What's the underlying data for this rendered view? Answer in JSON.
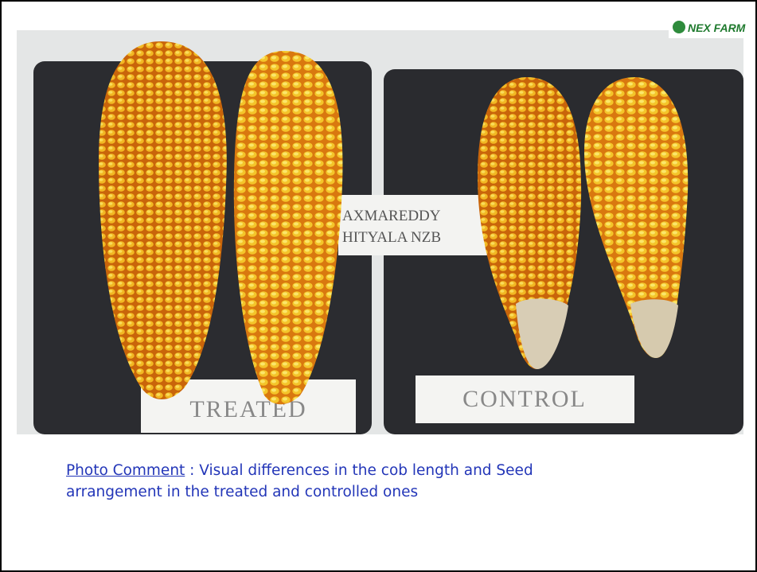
{
  "logo": "NEX FARM",
  "photo": {
    "sign_line_1": "AXMAREDDY",
    "sign_line_2": "HITYALA NZB",
    "treated_label": "TREATED",
    "control_label": "CONTROL"
  },
  "caption": {
    "link": "Photo Comment",
    "separator": " : ",
    "text": "Visual differences in the cob length and Seed arrangement in the treated and controlled ones"
  }
}
